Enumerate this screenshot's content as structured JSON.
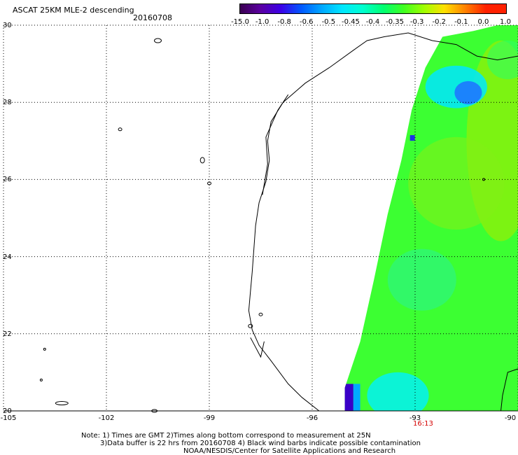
{
  "header": {
    "title": "ASCAT 25KM MLE-2 descending",
    "date": "20160708"
  },
  "colorbar": {
    "labels": [
      "-15.0",
      "-1.0",
      "-0.8",
      "-0.6",
      "-0.5",
      "-0.45",
      "-0.4",
      "-0.35",
      "-0.3",
      "-0.2",
      "-0.1",
      "0.0",
      "1.0"
    ],
    "colors": [
      "#3a0050",
      "#5a00a0",
      "#3c00e6",
      "#005aff",
      "#00a8ff",
      "#00e6ff",
      "#00ffd0",
      "#00ff70",
      "#40ff20",
      "#a0ff00",
      "#ffe000",
      "#ff8000",
      "#ff2000"
    ]
  },
  "map": {
    "lat_labels": [
      "30",
      "28",
      "26",
      "24",
      "22",
      "20"
    ],
    "lon_labels": [
      "-105",
      "-102",
      "-99",
      "-96",
      "-93",
      "-90"
    ],
    "lat_range": [
      20,
      30
    ],
    "lon_range": [
      -105,
      -90
    ],
    "grid": "dotted",
    "time_label": "16:13"
  },
  "notes": {
    "line1": "Note: 1) Times are GMT 2)Times along bottom correspond to measurement at 25N",
    "line2": "3)Data buffer is 22 hrs from 20160708 4) Black wind barbs indicate possible contamination",
    "line3": "NOAA/NESDIS/Center for Satellite Applications and Research"
  }
}
